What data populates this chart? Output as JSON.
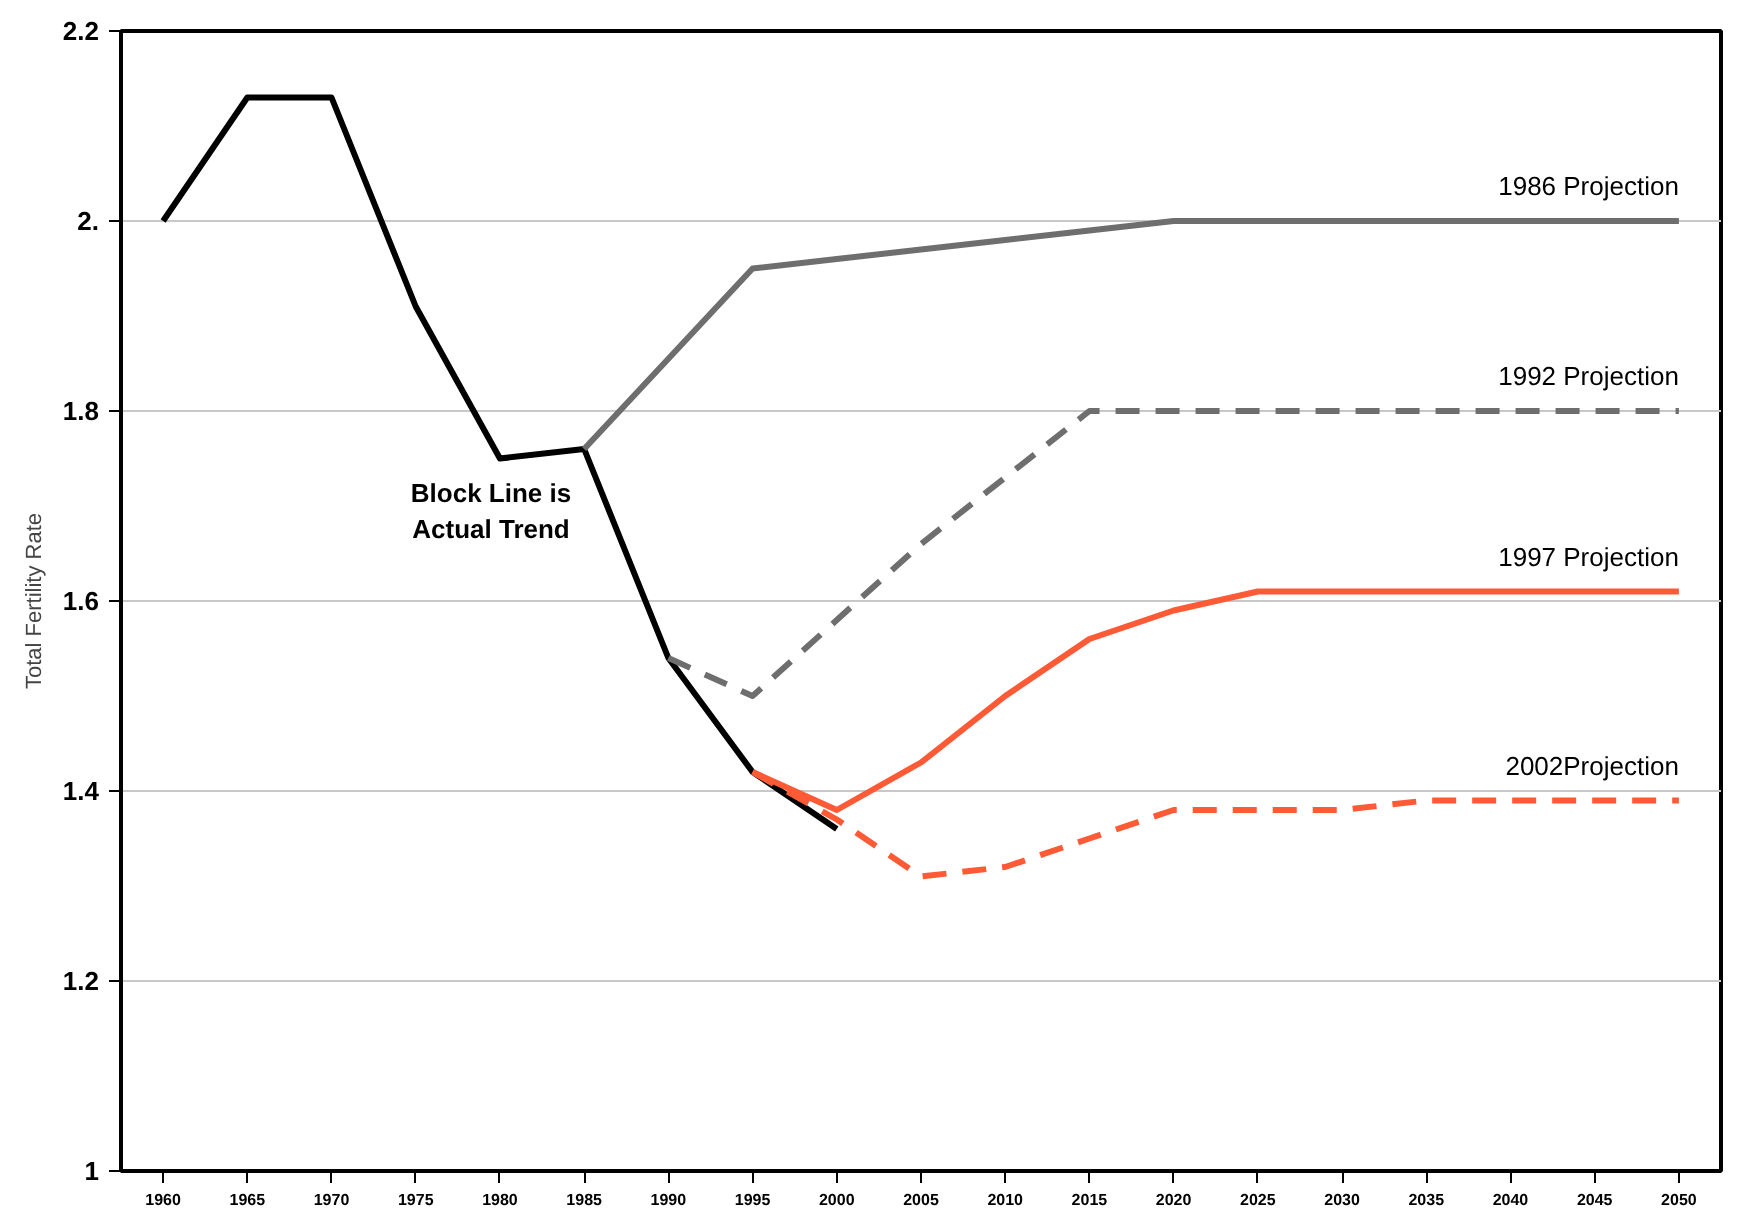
{
  "chart_data": {
    "type": "line",
    "ylabel": "Total Fertility Rate",
    "xlim": [
      1957.5,
      2052.5
    ],
    "ylim": [
      1,
      2.2
    ],
    "xticks": [
      1960,
      1965,
      1970,
      1975,
      1980,
      1985,
      1990,
      1995,
      2000,
      2005,
      2010,
      2015,
      2020,
      2025,
      2030,
      2035,
      2040,
      2045,
      2050
    ],
    "yticks": [
      1,
      1.2,
      1.4,
      1.6,
      1.8,
      {
        "value": 2,
        "label": "2."
      },
      2.2
    ],
    "grid": "y",
    "marker": "none",
    "annotations": [
      "Block Line is\nActual Trend"
    ],
    "series": [
      {
        "color": "#000000",
        "line_style": "solid",
        "x": [
          1960,
          1965,
          1970,
          1975,
          1980,
          1985,
          1990,
          1995,
          2000
        ],
        "values": [
          2.0,
          2.13,
          2.13,
          1.91,
          1.75,
          1.76,
          1.54,
          1.42,
          1.36
        ]
      },
      {
        "name": "1986 Projection",
        "color": "#6e6e6e",
        "line_style": "solid",
        "x": [
          1985,
          1995,
          2000,
          2005,
          2010,
          2015,
          2020,
          2025,
          2030,
          2035,
          2040,
          2045,
          2050
        ],
        "values": [
          1.76,
          1.95,
          1.96,
          1.97,
          1.98,
          1.99,
          2.0,
          2.0,
          2.0,
          2.0,
          2.0,
          2.0,
          2.0
        ]
      },
      {
        "name": "1992 Projection",
        "color": "#6e6e6e",
        "line_style": "dashed",
        "x": [
          1990,
          1995,
          2000,
          2005,
          2010,
          2015,
          2020,
          2025,
          2030,
          2035,
          2040,
          2045,
          2050
        ],
        "values": [
          1.54,
          1.5,
          1.58,
          1.66,
          1.73,
          1.8,
          1.8,
          1.8,
          1.8,
          1.8,
          1.8,
          1.8,
          1.8
        ]
      },
      {
        "name": "1997 Projection",
        "color": "#ff5a36",
        "line_style": "solid",
        "x": [
          1995,
          2000,
          2005,
          2010,
          2015,
          2020,
          2025,
          2030,
          2035,
          2040,
          2045,
          2050
        ],
        "values": [
          1.42,
          1.38,
          1.43,
          1.5,
          1.56,
          1.59,
          1.61,
          1.61,
          1.61,
          1.61,
          1.61,
          1.61
        ]
      },
      {
        "name": "2002Projection",
        "color": "#ff5a36",
        "line_style": "dashed",
        "x": [
          1995,
          2000,
          2005,
          2010,
          2015,
          2020,
          2025,
          2030,
          2035,
          2040,
          2045,
          2050
        ],
        "values": [
          1.42,
          1.37,
          1.31,
          1.32,
          1.35,
          1.38,
          1.38,
          1.38,
          1.39,
          1.39,
          1.39,
          1.39
        ]
      }
    ]
  }
}
